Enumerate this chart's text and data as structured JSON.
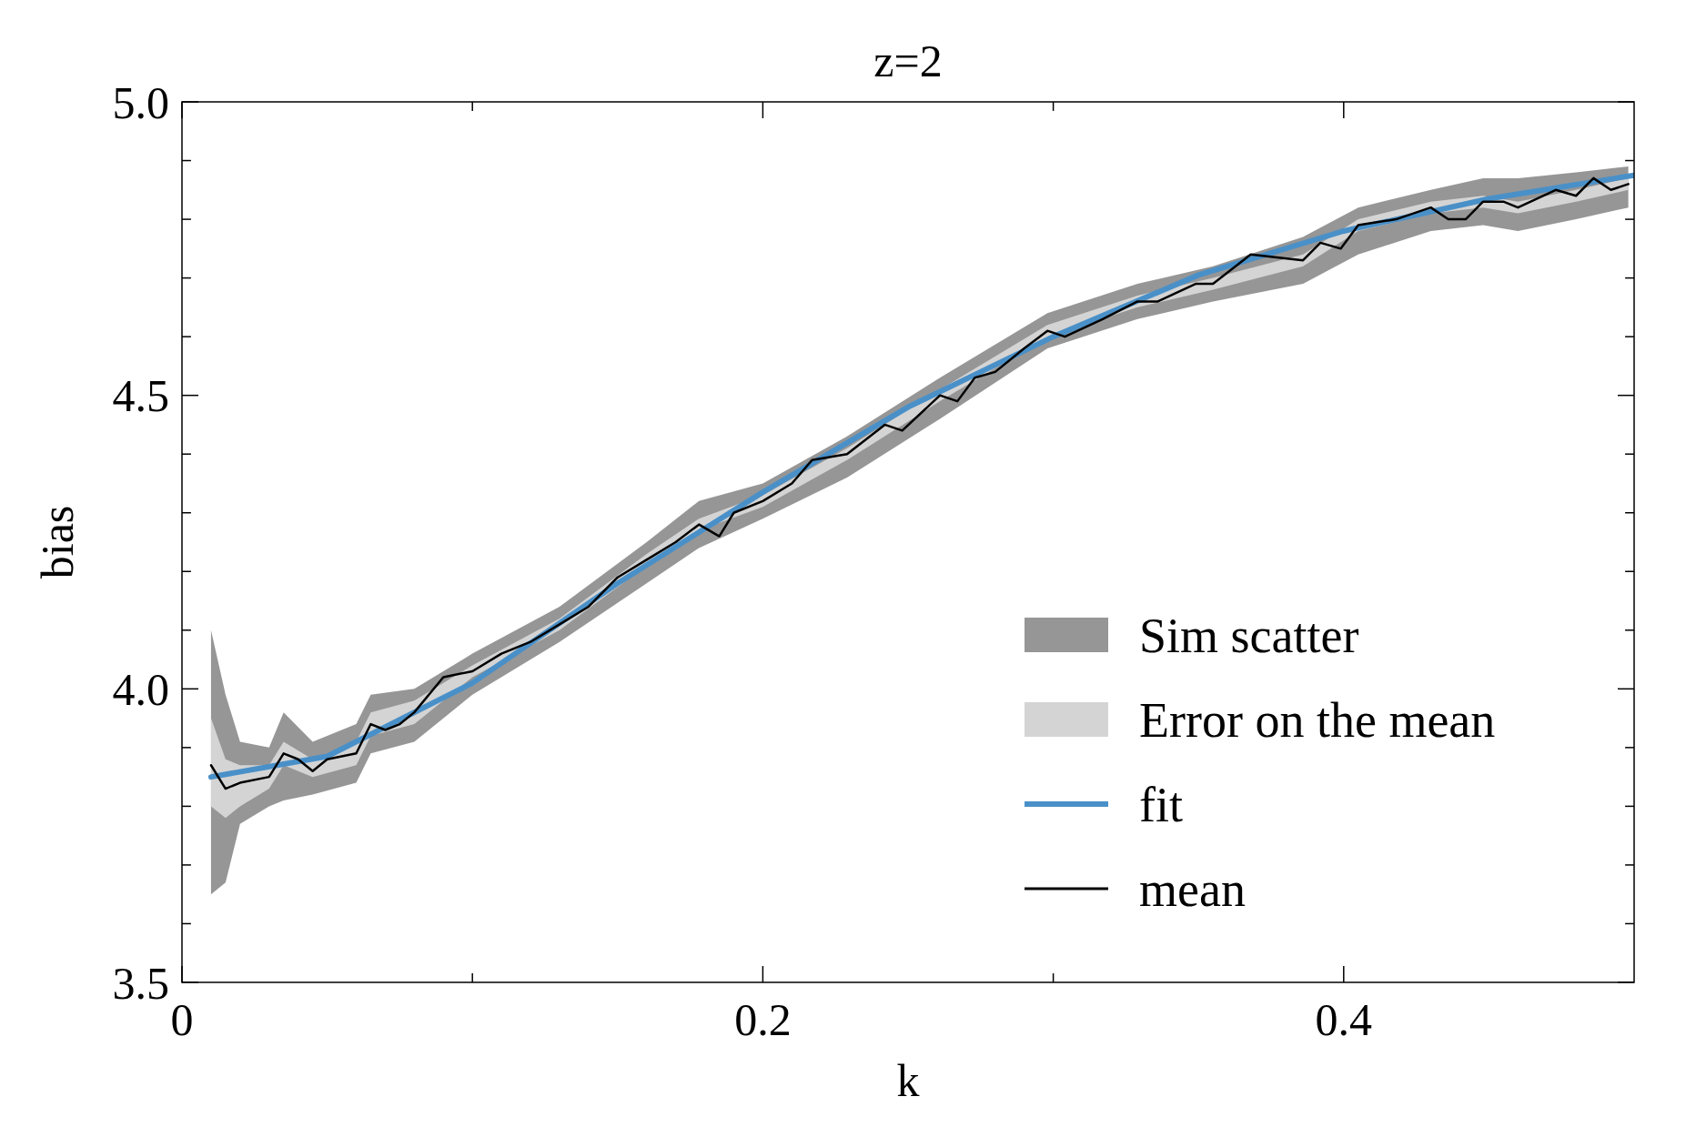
{
  "chart_data": {
    "type": "line",
    "title": "z=2",
    "xlabel": "k",
    "ylabel": "bias",
    "xlim": [
      0,
      0.5
    ],
    "ylim": [
      3.5,
      5.0
    ],
    "xticks": [
      0,
      {
        "value": 0.1,
        "label": null
      },
      0.2,
      {
        "value": 0.3,
        "label": null
      },
      0.4
    ],
    "yticks": [
      {
        "value": 3.5,
        "label": "3.5"
      },
      {
        "value": 3.6,
        "label": null
      },
      {
        "value": 3.7,
        "label": null
      },
      {
        "value": 3.8,
        "label": null
      },
      {
        "value": 3.9,
        "label": null
      },
      {
        "value": 4.0,
        "label": "4.0"
      },
      {
        "value": 4.1,
        "label": null
      },
      {
        "value": 4.2,
        "label": null
      },
      {
        "value": 4.3,
        "label": null
      },
      {
        "value": 4.4,
        "label": null
      },
      {
        "value": 4.5,
        "label": "4.5"
      },
      {
        "value": 4.6,
        "label": null
      },
      {
        "value": 4.7,
        "label": null
      },
      {
        "value": 4.8,
        "label": null
      },
      {
        "value": 4.9,
        "label": null
      },
      {
        "value": 5.0,
        "label": "5.0"
      }
    ],
    "grid": false,
    "legend": "bottom right",
    "marker": "none",
    "series": [
      {
        "name": "Sim scatter",
        "color": "#969696",
        "x": [
          0.01,
          0.015,
          0.02,
          0.03,
          0.035,
          0.045,
          0.06,
          0.065,
          0.08,
          0.1,
          0.13,
          0.16,
          0.178,
          0.2,
          0.229,
          0.261,
          0.298,
          0.329,
          0.355,
          0.386,
          0.405,
          0.43,
          0.448,
          0.46,
          0.48,
          0.498
        ],
        "values": [
          null,
          null,
          null,
          null,
          null,
          null,
          null,
          null,
          null,
          null,
          null,
          null,
          null,
          null,
          null,
          null,
          null,
          null,
          null,
          null,
          null,
          null,
          null,
          null,
          null,
          null
        ],
        "lower": [
          3.65,
          3.67,
          3.77,
          3.8,
          3.81,
          3.82,
          3.84,
          3.89,
          3.91,
          3.99,
          4.08,
          4.18,
          4.24,
          4.29,
          4.36,
          4.46,
          4.58,
          4.63,
          4.66,
          4.69,
          4.74,
          4.78,
          4.79,
          4.78,
          4.8,
          4.82
        ],
        "upper": [
          4.1,
          3.99,
          3.91,
          3.9,
          3.96,
          3.91,
          3.94,
          3.99,
          4.0,
          4.06,
          4.14,
          4.25,
          4.32,
          4.35,
          4.43,
          4.53,
          4.64,
          4.69,
          4.72,
          4.77,
          4.82,
          4.85,
          4.87,
          4.87,
          4.88,
          4.89
        ]
      },
      {
        "name": "Error on the mean",
        "color": "#d4d4d4",
        "x": [
          0.01,
          0.015,
          0.02,
          0.03,
          0.035,
          0.045,
          0.06,
          0.065,
          0.08,
          0.1,
          0.13,
          0.16,
          0.178,
          0.2,
          0.229,
          0.261,
          0.298,
          0.329,
          0.355,
          0.386,
          0.405,
          0.43,
          0.448,
          0.46,
          0.48,
          0.498
        ],
        "values": [
          null,
          null,
          null,
          null,
          null,
          null,
          null,
          null,
          null,
          null,
          null,
          null,
          null,
          null,
          null,
          null,
          null,
          null,
          null,
          null,
          null,
          null,
          null,
          null,
          null,
          null
        ],
        "lower": [
          3.8,
          3.78,
          3.8,
          3.83,
          3.87,
          3.85,
          3.87,
          3.92,
          3.94,
          4.02,
          4.1,
          4.21,
          4.27,
          4.31,
          4.39,
          4.49,
          4.6,
          4.65,
          4.68,
          4.72,
          4.78,
          4.81,
          4.82,
          4.81,
          4.83,
          4.85
        ],
        "upper": [
          3.95,
          3.88,
          3.87,
          3.87,
          3.91,
          3.88,
          3.91,
          3.96,
          3.98,
          4.04,
          4.12,
          4.23,
          4.29,
          4.33,
          4.41,
          4.51,
          4.62,
          4.67,
          4.7,
          4.74,
          4.8,
          4.83,
          4.84,
          4.83,
          4.85,
          4.87
        ]
      },
      {
        "name": "fit",
        "color": "#4a90c8",
        "x": [
          0.01,
          0.05,
          0.1,
          0.15,
          0.2,
          0.25,
          0.3,
          0.35,
          0.4,
          0.45,
          0.5
        ],
        "values": [
          3.85,
          3.885,
          4.01,
          4.18,
          4.335,
          4.48,
          4.6,
          4.705,
          4.78,
          4.835,
          4.875
        ]
      },
      {
        "name": "mean",
        "color": "#000000",
        "x": [
          0.01,
          0.015,
          0.02,
          0.03,
          0.035,
          0.04,
          0.045,
          0.05,
          0.06,
          0.065,
          0.07,
          0.075,
          0.08,
          0.09,
          0.1,
          0.11,
          0.12,
          0.13,
          0.14,
          0.15,
          0.16,
          0.17,
          0.178,
          0.185,
          0.19,
          0.2,
          0.21,
          0.217,
          0.229,
          0.242,
          0.248,
          0.261,
          0.267,
          0.273,
          0.28,
          0.29,
          0.298,
          0.304,
          0.317,
          0.329,
          0.336,
          0.349,
          0.355,
          0.368,
          0.386,
          0.392,
          0.399,
          0.405,
          0.418,
          0.43,
          0.436,
          0.442,
          0.448,
          0.455,
          0.46,
          0.473,
          0.48,
          0.486,
          0.492,
          0.498
        ],
        "values": [
          3.87,
          3.83,
          3.84,
          3.85,
          3.89,
          3.88,
          3.86,
          3.88,
          3.89,
          3.94,
          3.93,
          3.94,
          3.96,
          4.02,
          4.03,
          4.06,
          4.08,
          4.11,
          4.14,
          4.19,
          4.22,
          4.25,
          4.28,
          4.26,
          4.3,
          4.32,
          4.35,
          4.39,
          4.4,
          4.45,
          4.44,
          4.5,
          4.49,
          4.53,
          4.54,
          4.58,
          4.61,
          4.6,
          4.63,
          4.66,
          4.66,
          4.69,
          4.69,
          4.74,
          4.73,
          4.76,
          4.75,
          4.79,
          4.8,
          4.82,
          4.8,
          4.8,
          4.83,
          4.83,
          4.82,
          4.85,
          4.84,
          4.87,
          4.85,
          4.86
        ]
      }
    ]
  }
}
